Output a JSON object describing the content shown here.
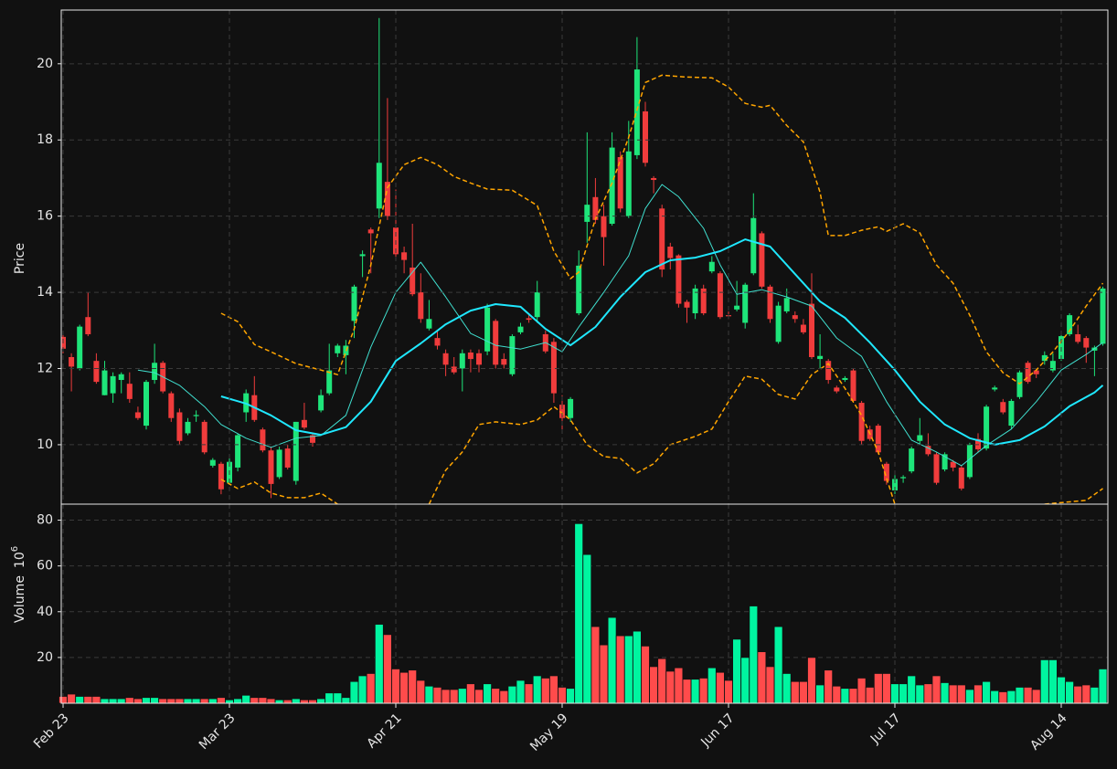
{
  "chart_data": [
    {
      "type": "candlestick",
      "ylabel": "Price",
      "grid": true,
      "up_color": "#1ee57a",
      "down_color": "#f03c3c",
      "ylim": [
        8.44,
        21.41
      ],
      "yticks": [
        10,
        12,
        14,
        16,
        18,
        20
      ],
      "categories": [
        "Feb 23",
        null,
        null,
        null,
        null,
        null,
        null,
        null,
        null,
        null,
        null,
        null,
        null,
        null,
        null,
        null,
        null,
        null,
        null,
        null,
        "Mar 23",
        null,
        null,
        null,
        null,
        null,
        null,
        null,
        null,
        null,
        null,
        null,
        null,
        null,
        null,
        null,
        null,
        null,
        null,
        null,
        "Apr 21",
        null,
        null,
        null,
        null,
        null,
        null,
        null,
        null,
        null,
        null,
        null,
        null,
        null,
        null,
        null,
        null,
        null,
        null,
        null,
        "May 19",
        null,
        null,
        null,
        null,
        null,
        null,
        null,
        null,
        null,
        null,
        null,
        null,
        null,
        null,
        null,
        null,
        null,
        null,
        null,
        "Jun 17",
        null,
        null,
        null,
        null,
        null,
        null,
        null,
        null,
        null,
        null,
        null,
        null,
        null,
        null,
        null,
        null,
        null,
        null,
        null,
        "Jul 17",
        null,
        null,
        null,
        null,
        null,
        null,
        null,
        null,
        null,
        null,
        null,
        null,
        null,
        null,
        null,
        null,
        null,
        null,
        null,
        "Aug 14",
        null,
        null,
        null,
        null,
        null
      ],
      "open": [
        12.83,
        12.3,
        12.0,
        13.35,
        12.2,
        11.3,
        11.35,
        11.7,
        11.6,
        10.85,
        10.5,
        11.7,
        12.15,
        11.35,
        10.85,
        10.3,
        10.75,
        10.6,
        9.45,
        9.5,
        9.0,
        9.4,
        10.85,
        11.3,
        10.4,
        9.85,
        9.15,
        9.9,
        9.05,
        10.65,
        10.25,
        10.9,
        11.35,
        12.4,
        12.35,
        13.25,
        14.95,
        15.65,
        16.2,
        16.9,
        15.7,
        15.05,
        14.65,
        14.0,
        13.05,
        12.8,
        12.4,
        12.05,
        12.0,
        12.42,
        12.4,
        12.45,
        13.25,
        12.25,
        11.85,
        12.95,
        13.32,
        13.35,
        12.9,
        12.7,
        11.05,
        10.7,
        13.45,
        15.85,
        16.5,
        16.0,
        15.8,
        17.55,
        16.0,
        17.6,
        18.75,
        17.0,
        16.2,
        15.2,
        14.97,
        13.75,
        13.45,
        14.1,
        14.55,
        14.5,
        13.4,
        13.55,
        13.2,
        14.5,
        15.55,
        14.15,
        12.7,
        13.5,
        13.4,
        13.15,
        13.7,
        12.25,
        12.2,
        11.5,
        11.7,
        11.95,
        11.1,
        10.4,
        10.5,
        9.5,
        8.8,
        9.12,
        9.3,
        10.1,
        9.97,
        9.75,
        9.35,
        9.55,
        9.4,
        9.15,
        10.15,
        9.9,
        11.45,
        11.12,
        10.5,
        11.25,
        12.15,
        11.95,
        12.2,
        11.95,
        12.25,
        12.9,
        12.9,
        12.8,
        12.47,
        12.65
      ],
      "high": [
        12.9,
        12.4,
        13.15,
        14.0,
        12.4,
        12.2,
        11.9,
        11.9,
        11.9,
        11.0,
        11.7,
        12.65,
        12.2,
        11.4,
        10.95,
        10.7,
        10.9,
        10.65,
        9.65,
        9.55,
        9.7,
        10.3,
        11.45,
        11.8,
        10.45,
        9.95,
        9.95,
        10.0,
        10.6,
        11.1,
        10.3,
        11.45,
        12.65,
        12.65,
        12.75,
        14.2,
        15.1,
        15.7,
        21.2,
        19.1,
        16.7,
        15.2,
        15.8,
        14.5,
        13.8,
        13.0,
        12.5,
        12.3,
        12.5,
        12.5,
        12.5,
        13.7,
        13.3,
        12.4,
        12.9,
        13.2,
        13.4,
        14.3,
        13.0,
        12.8,
        11.3,
        11.25,
        15.1,
        18.2,
        17.0,
        16.3,
        18.2,
        17.7,
        18.5,
        20.7,
        19.0,
        17.05,
        16.3,
        15.3,
        15.0,
        13.8,
        14.2,
        14.2,
        14.95,
        14.55,
        13.5,
        14.3,
        14.25,
        16.6,
        15.6,
        14.2,
        13.75,
        14.1,
        13.5,
        13.3,
        14.5,
        12.9,
        12.25,
        11.55,
        11.8,
        12.0,
        11.15,
        10.5,
        10.55,
        9.55,
        9.2,
        9.2,
        9.95,
        10.7,
        10.3,
        9.8,
        9.8,
        9.6,
        9.45,
        10.05,
        10.3,
        11.05,
        11.55,
        11.2,
        11.2,
        11.95,
        12.2,
        12.0,
        12.45,
        12.4,
        12.9,
        13.45,
        13.15,
        12.85,
        12.6,
        14.15
      ],
      "low": [
        12.4,
        11.4,
        11.95,
        12.85,
        11.6,
        11.3,
        11.1,
        11.35,
        11.1,
        10.65,
        10.4,
        11.6,
        11.35,
        10.6,
        10.0,
        10.25,
        10.6,
        9.75,
        9.4,
        8.7,
        8.95,
        9.3,
        10.6,
        10.6,
        9.8,
        8.6,
        9.1,
        9.35,
        8.95,
        10.4,
        9.95,
        10.85,
        11.3,
        12.3,
        11.85,
        12.8,
        14.4,
        14.5,
        15.95,
        15.9,
        14.9,
        14.5,
        13.9,
        13.2,
        13.0,
        12.5,
        11.8,
        11.85,
        11.4,
        11.9,
        11.9,
        12.35,
        12.0,
        12.0,
        11.8,
        12.9,
        13.2,
        13.2,
        12.4,
        11.1,
        10.4,
        10.6,
        13.4,
        15.3,
        15.8,
        14.7,
        15.75,
        16.1,
        15.95,
        17.5,
        17.3,
        16.6,
        14.4,
        14.6,
        13.6,
        13.2,
        13.3,
        13.4,
        14.5,
        13.3,
        13.3,
        13.5,
        13.05,
        14.45,
        14.1,
        13.2,
        12.65,
        13.45,
        13.2,
        12.9,
        12.25,
        12.0,
        11.6,
        11.35,
        11.65,
        11.1,
        10.0,
        10.1,
        9.75,
        8.95,
        8.7,
        9.0,
        9.25,
        10.0,
        9.7,
        8.95,
        9.3,
        9.3,
        8.8,
        9.1,
        9.8,
        9.85,
        11.4,
        10.8,
        10.4,
        11.2,
        11.6,
        11.75,
        12.1,
        11.9,
        12.2,
        12.85,
        12.65,
        12.15,
        11.8,
        12.6
      ],
      "close": [
        12.52,
        12.05,
        13.1,
        12.9,
        11.65,
        11.95,
        11.8,
        11.85,
        11.2,
        10.7,
        11.65,
        12.15,
        11.4,
        10.7,
        10.1,
        10.6,
        10.78,
        9.8,
        9.6,
        8.83,
        9.55,
        10.25,
        11.35,
        10.65,
        9.85,
        8.97,
        9.87,
        9.4,
        10.6,
        10.45,
        10.05,
        11.3,
        11.95,
        12.6,
        12.6,
        14.15,
        15.0,
        15.55,
        17.4,
        16.0,
        15.0,
        14.85,
        13.95,
        13.3,
        13.3,
        12.6,
        12.1,
        11.9,
        12.4,
        12.25,
        12.1,
        13.6,
        12.1,
        12.1,
        12.85,
        13.1,
        13.28,
        14.0,
        12.45,
        11.35,
        10.7,
        11.2,
        14.7,
        16.3,
        15.9,
        15.45,
        17.8,
        16.2,
        17.7,
        19.85,
        17.4,
        16.95,
        14.6,
        14.9,
        13.7,
        13.6,
        14.1,
        13.45,
        14.8,
        13.35,
        13.38,
        13.65,
        14.2,
        15.95,
        14.15,
        13.3,
        13.65,
        13.85,
        13.3,
        12.95,
        12.3,
        12.33,
        11.7,
        11.4,
        11.75,
        11.15,
        10.1,
        10.15,
        9.8,
        9.05,
        9.1,
        9.15,
        9.9,
        10.25,
        9.75,
        9.0,
        9.75,
        9.4,
        8.85,
        10.0,
        9.88,
        11.0,
        11.5,
        10.85,
        11.15,
        11.9,
        11.65,
        11.85,
        12.35,
        12.2,
        12.85,
        13.4,
        12.7,
        12.55,
        12.55,
        14.1
      ],
      "series": [
        {
          "color": "#40e0d0",
          "width": 1,
          "dashed": false,
          "x": [
            9,
            11,
            14,
            17,
            19,
            22,
            25,
            28,
            31,
            34,
            37,
            40,
            43,
            46,
            49,
            52,
            55,
            58,
            60,
            62,
            65,
            68,
            70,
            72,
            74,
            77,
            79,
            81,
            84,
            87,
            90,
            93,
            96,
            99,
            102,
            105,
            108,
            111,
            114,
            117,
            120,
            123,
            125
          ],
          "values": [
            11.96,
            11.89,
            11.56,
            11.0,
            10.53,
            10.17,
            9.93,
            10.17,
            10.24,
            10.77,
            12.56,
            14.0,
            14.79,
            13.88,
            12.92,
            12.61,
            12.51,
            12.68,
            12.44,
            13.09,
            14.0,
            14.96,
            16.2,
            16.83,
            16.51,
            15.68,
            14.72,
            13.95,
            14.07,
            13.88,
            13.64,
            12.8,
            12.32,
            11.13,
            10.12,
            9.81,
            9.45,
            9.98,
            10.41,
            11.13,
            11.96,
            12.37,
            12.68
          ]
        },
        {
          "color": "#1fe8ff",
          "width": 2,
          "dashed": false,
          "x": [
            19,
            22,
            25,
            28,
            31,
            34,
            37,
            40,
            43,
            46,
            49,
            52,
            55,
            58,
            61,
            64,
            67,
            70,
            73,
            76,
            79,
            82,
            85,
            88,
            91,
            94,
            97,
            100,
            103,
            106,
            109,
            112,
            115,
            118,
            121,
            124,
            125
          ],
          "values": [
            11.27,
            11.08,
            10.77,
            10.38,
            10.26,
            10.46,
            11.13,
            12.2,
            12.66,
            13.16,
            13.52,
            13.69,
            13.62,
            13.04,
            12.61,
            13.09,
            13.88,
            14.53,
            14.84,
            14.91,
            15.08,
            15.39,
            15.2,
            14.48,
            13.76,
            13.33,
            12.68,
            11.96,
            11.13,
            10.53,
            10.17,
            10.0,
            10.12,
            10.48,
            11.01,
            11.37,
            11.56
          ]
        },
        {
          "color": "#ffa500",
          "width": 1.5,
          "dashed": true,
          "x": [
            19,
            21,
            23,
            25,
            28,
            31,
            33,
            35,
            37,
            39,
            41,
            43,
            45,
            47,
            49,
            51,
            54,
            57,
            59,
            61,
            62,
            64,
            66,
            68,
            70,
            72,
            75,
            78,
            80,
            82,
            84,
            85,
            87,
            89,
            91,
            92,
            94,
            96,
            98,
            99,
            101,
            103,
            105,
            107,
            109,
            111,
            113,
            115,
            117,
            119,
            121,
            123,
            125
          ],
          "values": [
            13.45,
            13.23,
            12.63,
            12.44,
            12.13,
            11.96,
            11.84,
            13.04,
            14.72,
            16.75,
            17.35,
            17.54,
            17.35,
            17.04,
            16.87,
            16.71,
            16.68,
            16.28,
            15.08,
            14.36,
            14.53,
            15.92,
            16.87,
            18.07,
            19.51,
            19.7,
            19.65,
            19.63,
            19.39,
            18.96,
            18.86,
            18.91,
            18.38,
            17.95,
            16.63,
            15.49,
            15.49,
            15.63,
            15.72,
            15.6,
            15.8,
            15.56,
            14.72,
            14.24,
            13.4,
            12.44,
            11.89,
            11.6,
            11.96,
            12.44,
            12.99,
            13.64,
            14.24
          ]
        },
        {
          "color": "#ffa500",
          "width": 1.5,
          "dashed": true,
          "x": [
            19,
            21,
            23,
            25,
            27,
            29,
            31,
            33,
            40,
            44,
            46,
            48,
            50,
            52,
            55,
            57,
            59,
            61,
            63,
            65,
            67,
            69,
            71,
            73,
            76,
            78,
            80,
            82,
            84,
            86,
            88,
            90,
            92,
            94,
            96,
            98,
            100,
            110,
            118,
            123,
            125
          ],
          "values": [
            9.09,
            8.85,
            9.02,
            8.73,
            8.61,
            8.61,
            8.73,
            8.44,
            null,
            8.44,
            9.33,
            9.81,
            10.53,
            10.6,
            10.53,
            10.65,
            11.0,
            10.65,
            10.0,
            9.69,
            9.64,
            9.26,
            9.5,
            10.0,
            10.22,
            10.41,
            11.13,
            11.8,
            11.72,
            11.32,
            11.2,
            11.84,
            12.13,
            11.48,
            10.77,
            9.81,
            8.44,
            null,
            8.44,
            8.54,
            8.85
          ]
        }
      ]
    },
    {
      "type": "bar",
      "ylabel": "Volume",
      "multiplier": {
        "base": "10",
        "exponent": "6"
      },
      "grid": true,
      "up_color": "#00f5a0",
      "down_color": "#ff4b4b",
      "ylim": [
        0,
        87
      ],
      "yticks": [
        20,
        40,
        60,
        80
      ],
      "values": [
        3,
        4,
        3,
        3,
        3,
        2,
        2,
        2,
        2.5,
        2,
        2.5,
        2.5,
        2,
        2,
        2,
        2,
        2,
        2,
        2,
        2.5,
        1.5,
        2,
        3.5,
        2.5,
        2.5,
        2,
        1.5,
        1.5,
        2,
        1.5,
        1.5,
        2,
        4.5,
        4.5,
        2.5,
        9.5,
        12,
        13,
        34.5,
        30,
        15,
        13.5,
        14.5,
        10,
        7.5,
        7,
        6,
        6,
        6.5,
        8.5,
        6,
        8.5,
        6.5,
        5.5,
        7.5,
        10,
        8.5,
        12,
        11,
        12,
        7,
        6.5,
        78.5,
        65,
        33.5,
        25.5,
        37.5,
        29.5,
        29.5,
        31.5,
        25,
        16,
        19.5,
        14,
        15.5,
        10.5,
        10.5,
        11,
        15.5,
        13.5,
        10,
        28,
        20,
        42.5,
        22.5,
        16,
        33.5,
        13,
        9.5,
        9.5,
        20,
        8,
        14.5,
        7.5,
        6.5,
        6.5,
        11,
        7,
        13,
        13,
        8.5,
        8.5,
        12,
        8,
        8.5,
        12,
        9,
        8,
        8,
        6,
        8,
        9.5,
        5.5,
        5,
        5.5,
        7,
        7,
        6,
        19,
        19,
        11.5,
        9.5,
        7.5,
        8,
        7,
        15
      ]
    }
  ]
}
